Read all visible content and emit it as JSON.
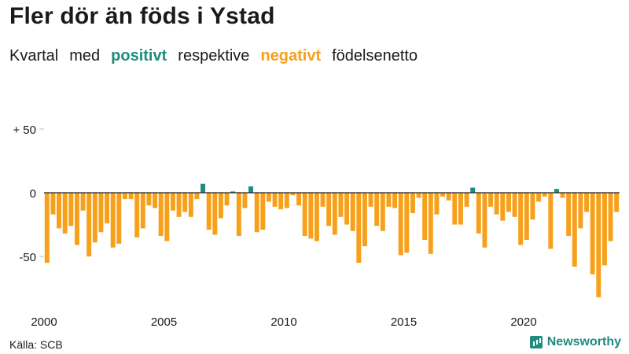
{
  "title": "Fler dör än föds i Ystad",
  "subtitle": {
    "w1": "Kvartal",
    "w2": "med",
    "positive": "positivt",
    "w3": "respektive",
    "negative": "negativt",
    "w4": "födelsenetto"
  },
  "source": "Källa: SCB",
  "brand": "Newsworthy",
  "colors": {
    "positive": "#1e8c7e",
    "negative": "#f7a01b",
    "text": "#1a1a1a"
  },
  "chart_data": {
    "type": "bar",
    "ylim": [
      -85,
      60
    ],
    "y_ticks": [
      {
        "value": 50,
        "label": "+ 50"
      },
      {
        "value": 0,
        "label": "0"
      },
      {
        "value": -50,
        "label": "-50"
      }
    ],
    "x_ticks": [
      {
        "year": 2000,
        "label": "2000"
      },
      {
        "year": 2005,
        "label": "2005"
      },
      {
        "year": 2010,
        "label": "2010"
      },
      {
        "year": 2015,
        "label": "2015"
      },
      {
        "year": 2020,
        "label": "2020"
      }
    ],
    "start_year": 2000,
    "values": [
      -55,
      -17,
      -28,
      -32,
      -26,
      -41,
      -14,
      -50,
      -39,
      -31,
      -24,
      -43,
      -40,
      -5,
      -5,
      -35,
      -28,
      -10,
      -12,
      -34,
      -38,
      -14,
      -19,
      -15,
      -19,
      -5,
      7,
      -29,
      -33,
      -20,
      -10,
      1,
      -34,
      -12,
      5,
      -31,
      -29,
      -7,
      -11,
      -13,
      -12,
      -2,
      -10,
      -34,
      -36,
      -38,
      -11,
      -26,
      -33,
      -19,
      -25,
      -30,
      -55,
      -42,
      -11,
      -26,
      -30,
      -11,
      -12,
      -49,
      -47,
      -16,
      -4,
      -37,
      -48,
      -17,
      -3,
      -6,
      -25,
      -25,
      -11,
      4,
      -32,
      -43,
      -11,
      -17,
      -22,
      -15,
      -19,
      -41,
      -37,
      -21,
      -7,
      -3,
      -44,
      3,
      -4,
      -34,
      -58,
      -28,
      -15,
      -64,
      -82,
      -57,
      -38,
      -15
    ]
  }
}
